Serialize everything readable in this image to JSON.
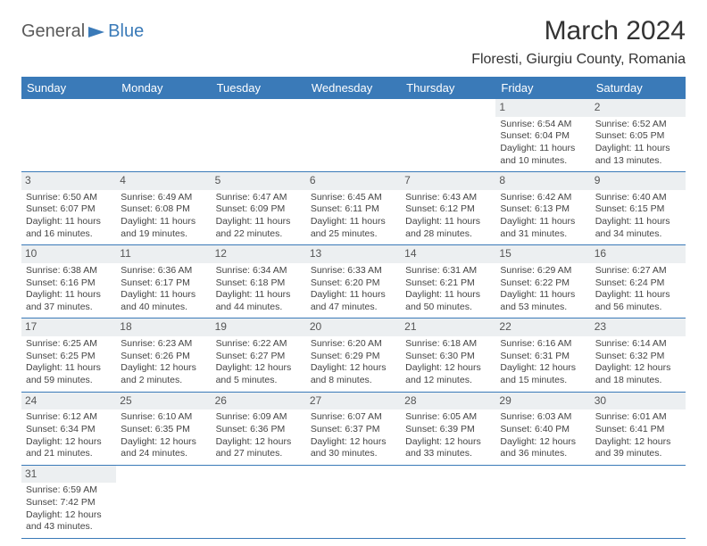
{
  "logo": {
    "general": "General",
    "blue": "Blue"
  },
  "header": {
    "month_title": "March 2024",
    "location": "Floresti, Giurgiu County, Romania"
  },
  "day_names": [
    "Sunday",
    "Monday",
    "Tuesday",
    "Wednesday",
    "Thursday",
    "Friday",
    "Saturday"
  ],
  "colors": {
    "header_bg": "#3a7ab8",
    "daynum_bg": "#eceff1",
    "border": "#3a7ab8",
    "text": "#444444"
  },
  "layout": {
    "cols": 7,
    "rows": 6,
    "leading_blanks": 5
  },
  "days": [
    {
      "n": 1,
      "sunrise": "6:54 AM",
      "sunset": "6:04 PM",
      "day_h": 11,
      "day_m": 10
    },
    {
      "n": 2,
      "sunrise": "6:52 AM",
      "sunset": "6:05 PM",
      "day_h": 11,
      "day_m": 13
    },
    {
      "n": 3,
      "sunrise": "6:50 AM",
      "sunset": "6:07 PM",
      "day_h": 11,
      "day_m": 16
    },
    {
      "n": 4,
      "sunrise": "6:49 AM",
      "sunset": "6:08 PM",
      "day_h": 11,
      "day_m": 19
    },
    {
      "n": 5,
      "sunrise": "6:47 AM",
      "sunset": "6:09 PM",
      "day_h": 11,
      "day_m": 22
    },
    {
      "n": 6,
      "sunrise": "6:45 AM",
      "sunset": "6:11 PM",
      "day_h": 11,
      "day_m": 25
    },
    {
      "n": 7,
      "sunrise": "6:43 AM",
      "sunset": "6:12 PM",
      "day_h": 11,
      "day_m": 28
    },
    {
      "n": 8,
      "sunrise": "6:42 AM",
      "sunset": "6:13 PM",
      "day_h": 11,
      "day_m": 31
    },
    {
      "n": 9,
      "sunrise": "6:40 AM",
      "sunset": "6:15 PM",
      "day_h": 11,
      "day_m": 34
    },
    {
      "n": 10,
      "sunrise": "6:38 AM",
      "sunset": "6:16 PM",
      "day_h": 11,
      "day_m": 37
    },
    {
      "n": 11,
      "sunrise": "6:36 AM",
      "sunset": "6:17 PM",
      "day_h": 11,
      "day_m": 40
    },
    {
      "n": 12,
      "sunrise": "6:34 AM",
      "sunset": "6:18 PM",
      "day_h": 11,
      "day_m": 44
    },
    {
      "n": 13,
      "sunrise": "6:33 AM",
      "sunset": "6:20 PM",
      "day_h": 11,
      "day_m": 47
    },
    {
      "n": 14,
      "sunrise": "6:31 AM",
      "sunset": "6:21 PM",
      "day_h": 11,
      "day_m": 50
    },
    {
      "n": 15,
      "sunrise": "6:29 AM",
      "sunset": "6:22 PM",
      "day_h": 11,
      "day_m": 53
    },
    {
      "n": 16,
      "sunrise": "6:27 AM",
      "sunset": "6:24 PM",
      "day_h": 11,
      "day_m": 56
    },
    {
      "n": 17,
      "sunrise": "6:25 AM",
      "sunset": "6:25 PM",
      "day_h": 11,
      "day_m": 59
    },
    {
      "n": 18,
      "sunrise": "6:23 AM",
      "sunset": "6:26 PM",
      "day_h": 12,
      "day_m": 2
    },
    {
      "n": 19,
      "sunrise": "6:22 AM",
      "sunset": "6:27 PM",
      "day_h": 12,
      "day_m": 5
    },
    {
      "n": 20,
      "sunrise": "6:20 AM",
      "sunset": "6:29 PM",
      "day_h": 12,
      "day_m": 8
    },
    {
      "n": 21,
      "sunrise": "6:18 AM",
      "sunset": "6:30 PM",
      "day_h": 12,
      "day_m": 12
    },
    {
      "n": 22,
      "sunrise": "6:16 AM",
      "sunset": "6:31 PM",
      "day_h": 12,
      "day_m": 15
    },
    {
      "n": 23,
      "sunrise": "6:14 AM",
      "sunset": "6:32 PM",
      "day_h": 12,
      "day_m": 18
    },
    {
      "n": 24,
      "sunrise": "6:12 AM",
      "sunset": "6:34 PM",
      "day_h": 12,
      "day_m": 21
    },
    {
      "n": 25,
      "sunrise": "6:10 AM",
      "sunset": "6:35 PM",
      "day_h": 12,
      "day_m": 24
    },
    {
      "n": 26,
      "sunrise": "6:09 AM",
      "sunset": "6:36 PM",
      "day_h": 12,
      "day_m": 27
    },
    {
      "n": 27,
      "sunrise": "6:07 AM",
      "sunset": "6:37 PM",
      "day_h": 12,
      "day_m": 30
    },
    {
      "n": 28,
      "sunrise": "6:05 AM",
      "sunset": "6:39 PM",
      "day_h": 12,
      "day_m": 33
    },
    {
      "n": 29,
      "sunrise": "6:03 AM",
      "sunset": "6:40 PM",
      "day_h": 12,
      "day_m": 36
    },
    {
      "n": 30,
      "sunrise": "6:01 AM",
      "sunset": "6:41 PM",
      "day_h": 12,
      "day_m": 39
    },
    {
      "n": 31,
      "sunrise": "6:59 AM",
      "sunset": "7:42 PM",
      "day_h": 12,
      "day_m": 43
    }
  ],
  "labels": {
    "sunrise": "Sunrise:",
    "sunset": "Sunset:",
    "daylight1": "Daylight:",
    "hours": "hours",
    "and": "and",
    "minutes": "minutes."
  }
}
